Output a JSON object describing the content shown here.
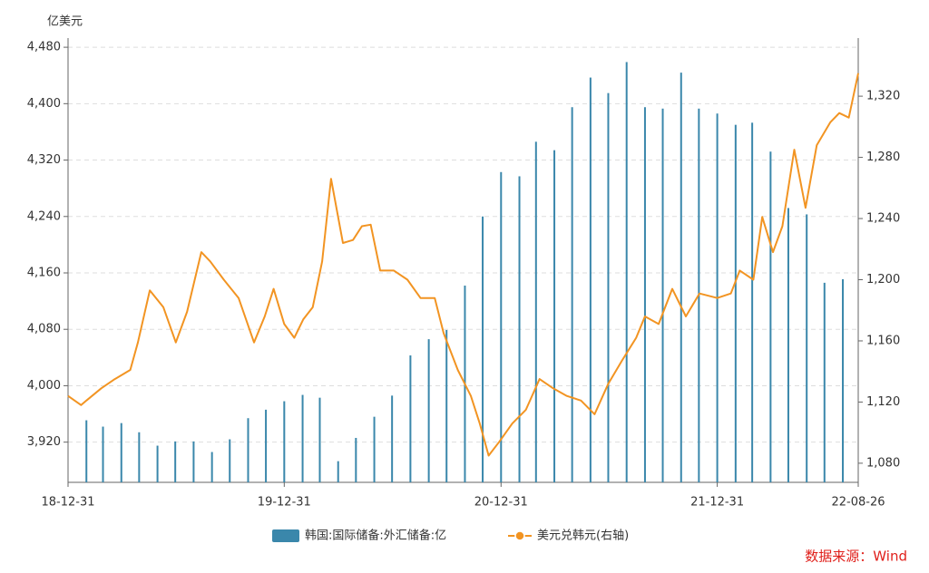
{
  "chart_data": {
    "type": "combo",
    "y_label": "亿美元",
    "source": "数据来源：Wind",
    "xlim": [
      "18-12-31",
      "22-08-26"
    ],
    "xticks": [
      "18-12-31",
      "19-12-31",
      "20-12-31",
      "21-12-31",
      "22-08-26"
    ],
    "ylim": [
      3863,
      4493
    ],
    "yticks": [
      {
        "value": 3920,
        "label": "3,920"
      },
      {
        "value": 4000,
        "label": "4,000"
      },
      {
        "value": 4080,
        "label": "4,080"
      },
      {
        "value": 4160,
        "label": "4,160"
      },
      {
        "value": 4240,
        "label": "4,240"
      },
      {
        "value": 4320,
        "label": "4,320"
      },
      {
        "value": 4400,
        "label": "4,400"
      },
      {
        "value": 4480,
        "label": "4,480"
      }
    ],
    "y2lim": [
      1067.5,
      1358
    ],
    "y2ticks": [
      {
        "value": 1080,
        "label": "1,080"
      },
      {
        "value": 1120,
        "label": "1,120"
      },
      {
        "value": 1160,
        "label": "1,160"
      },
      {
        "value": 1200,
        "label": "1,200"
      },
      {
        "value": 1240,
        "label": "1,240"
      },
      {
        "value": 1280,
        "label": "1,280"
      },
      {
        "value": 1320,
        "label": "1,320"
      }
    ],
    "grid": true,
    "legend": "bottom",
    "series": [
      {
        "name": "韩国:国际储备:外汇储备:亿",
        "type": "bar",
        "color": "#3a87ab",
        "x": [
          "19-01-31",
          "19-02-28",
          "19-03-31",
          "19-04-30",
          "19-05-31",
          "19-06-30",
          "19-07-31",
          "19-08-31",
          "19-09-30",
          "19-10-31",
          "19-11-30",
          "19-12-31",
          "20-01-31",
          "20-02-29",
          "20-03-31",
          "20-04-30",
          "20-05-31",
          "20-06-30",
          "20-07-31",
          "20-08-31",
          "20-09-30",
          "20-10-31",
          "20-11-30",
          "20-12-31",
          "21-01-31",
          "21-02-28",
          "21-03-31",
          "21-04-30",
          "21-05-31",
          "21-06-30",
          "21-07-31",
          "21-08-31",
          "21-09-30",
          "21-10-31",
          "21-11-30",
          "21-12-31",
          "22-01-31",
          "22-02-28",
          "22-03-31",
          "22-04-30",
          "22-05-31",
          "22-06-30",
          "22-07-31"
        ],
        "values": [
          3951,
          3942,
          3947,
          3934,
          3915,
          3921,
          3921,
          3906,
          3924,
          3954,
          3966,
          3978,
          3987,
          3983,
          3893,
          3926,
          3956,
          3986,
          4043,
          4066,
          4079,
          4142,
          4240,
          4303,
          4297,
          4346,
          4334,
          4395,
          4437,
          4415,
          4459,
          4395,
          4393,
          4444,
          4393,
          4386,
          4370,
          4373,
          4332,
          4252,
          4243,
          4146,
          4151
        ]
      },
      {
        "name": "美元兑韩元(右轴)",
        "type": "line",
        "axis": "y2",
        "color": "#f29422",
        "x": [
          "18-12-31",
          "19-01-22",
          "19-01-31",
          "19-02-25",
          "19-03-20",
          "19-04-15",
          "19-04-28",
          "19-05-18",
          "19-06-10",
          "19-07-01",
          "19-07-20",
          "19-08-13",
          "19-08-28",
          "19-09-20",
          "19-10-15",
          "19-11-10",
          "19-11-28",
          "19-12-13",
          "19-12-31",
          "20-01-17",
          "20-02-01",
          "20-02-17",
          "20-03-04",
          "20-03-19",
          "20-04-08",
          "20-04-25",
          "20-05-10",
          "20-05-25",
          "20-06-10",
          "20-07-03",
          "20-07-26",
          "20-08-17",
          "20-09-10",
          "20-09-25",
          "20-10-19",
          "20-11-10",
          "20-11-25",
          "20-12-10",
          "20-12-28",
          "21-01-19",
          "21-02-11",
          "21-03-06",
          "21-03-29",
          "21-04-21",
          "21-05-15",
          "21-06-07",
          "21-06-30",
          "21-07-23",
          "21-08-16",
          "21-08-31",
          "21-09-23",
          "21-10-16",
          "21-11-08",
          "21-12-01",
          "21-12-31",
          "22-01-23",
          "22-02-07",
          "22-03-02",
          "22-03-17",
          "22-04-04",
          "22-04-20",
          "22-05-10",
          "22-05-29",
          "22-06-17",
          "22-07-10",
          "22-07-25",
          "22-08-10",
          "22-08-26"
        ],
        "values": [
          1124,
          1118,
          1121,
          1129,
          1135,
          1141,
          1159,
          1193,
          1182,
          1159,
          1179,
          1218,
          1212,
          1200,
          1188,
          1159,
          1176,
          1194,
          1171,
          1162,
          1174,
          1182,
          1212,
          1266,
          1224,
          1226,
          1235,
          1236,
          1206,
          1206,
          1200,
          1188,
          1188,
          1165,
          1141,
          1124,
          1106,
          1085,
          1094,
          1106,
          1115,
          1135,
          1129,
          1124,
          1121,
          1112,
          1132,
          1147,
          1162,
          1176,
          1171,
          1194,
          1176,
          1191,
          1188,
          1191,
          1206,
          1200,
          1241,
          1218,
          1235,
          1285,
          1247,
          1288,
          1303,
          1309,
          1306,
          1335
        ]
      }
    ]
  }
}
